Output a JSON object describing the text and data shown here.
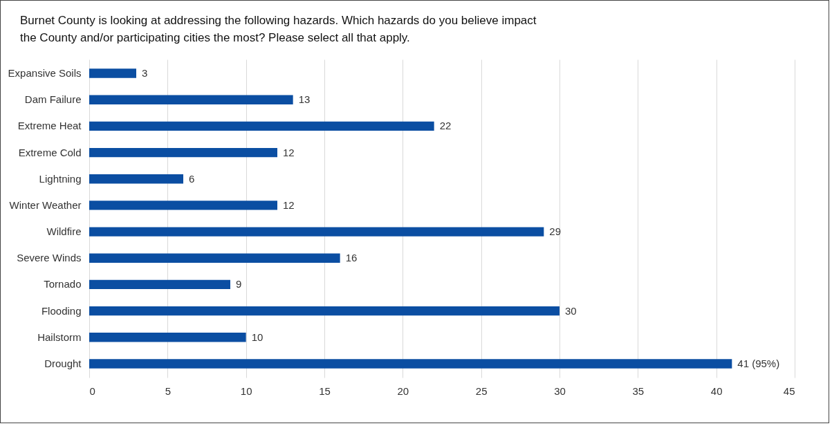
{
  "chart_data": {
    "type": "bar",
    "orientation": "horizontal",
    "title": "Burnet County is looking at addressing the following hazards. Which hazards do you believe impact the County and/or participating cities the most? Please select all that apply.",
    "categories": [
      "Expansive Soils",
      "Dam Failure",
      "Extreme Heat",
      "Extreme Cold",
      "Lightning",
      "Winter Weather",
      "Wildfire",
      "Severe Winds",
      "Tornado",
      "Flooding",
      "Hailstorm",
      "Drought"
    ],
    "values": [
      3,
      13,
      22,
      12,
      6,
      12,
      29,
      16,
      9,
      30,
      10,
      41
    ],
    "value_labels": [
      "3",
      "13",
      "22",
      "12",
      "6",
      "12",
      "29",
      "16",
      "9",
      "30",
      "10",
      "41 (95%)"
    ],
    "color": "#0b4ea2",
    "xlim": [
      0,
      45
    ],
    "xticks": [
      0,
      5,
      10,
      15,
      20,
      25,
      30,
      35,
      40,
      45
    ],
    "grid": "x"
  }
}
